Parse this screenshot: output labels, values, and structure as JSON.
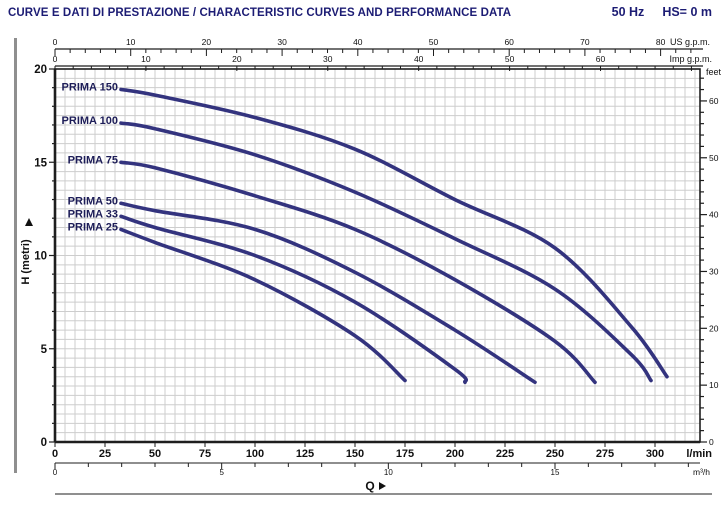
{
  "header": {
    "title": "CURVE E DATI DI PRESTAZIONE / CHARACTERISTIC CURVES AND PERFORMANCE DATA",
    "frequency": "50 Hz",
    "suction_head": "HS= 0 m"
  },
  "chart_data": {
    "type": "line",
    "title": "CURVE E DATI DI PRESTAZIONE / CHARACTERISTIC CURVES AND PERFORMANCE DATA",
    "x_axis_title": "Q",
    "y_axis_title": "H (metri)",
    "x_axes": {
      "us_gpm": {
        "unit": "US g.p.m.",
        "ticks": [
          0,
          10,
          20,
          30,
          40,
          50,
          60,
          70,
          80
        ],
        "minor_step": 2,
        "lmin_per_unit": 3.785
      },
      "imp_gpm": {
        "unit": "Imp g.p.m.",
        "ticks": [
          0,
          10,
          20,
          30,
          40,
          50,
          60
        ],
        "minor_step": 2,
        "lmin_per_unit": 4.546
      },
      "lmin": {
        "unit": "l/min",
        "ticks": [
          0,
          25,
          50,
          75,
          100,
          125,
          150,
          175,
          200,
          225,
          250,
          275,
          300
        ],
        "range": [
          0,
          322.5
        ]
      },
      "m3h": {
        "unit": "m³/h",
        "ticks": [
          0,
          5,
          10,
          15
        ],
        "minor_step": 1,
        "lmin_per_unit": 16.667
      }
    },
    "y_axes": {
      "metres": {
        "label": "H (metri)",
        "ticks": [
          0,
          5,
          10,
          15,
          20
        ],
        "minor_step": 1,
        "range": [
          0,
          20
        ]
      },
      "feet": {
        "unit": "feet",
        "ticks": [
          0,
          10,
          20,
          30,
          40,
          50,
          60
        ],
        "minor_step": 2,
        "m_per_unit": 0.3048
      }
    },
    "grid": {
      "x_step_lmin": 5,
      "y_step_m": 0.5,
      "on": true
    },
    "legend_position": "curve-start-labels",
    "series_color": "#33337e",
    "series_label_color": "#1d1d58",
    "series": [
      {
        "name": "PRIMA 150",
        "points": [
          [
            33,
            18.9
          ],
          [
            50,
            18.6
          ],
          [
            100,
            17.4
          ],
          [
            150,
            15.7
          ],
          [
            200,
            13.0
          ],
          [
            250,
            10.4
          ],
          [
            288,
            6.2
          ],
          [
            306,
            3.5
          ]
        ]
      },
      {
        "name": "PRIMA 100",
        "points": [
          [
            33,
            17.1
          ],
          [
            50,
            16.8
          ],
          [
            100,
            15.4
          ],
          [
            150,
            13.4
          ],
          [
            200,
            10.9
          ],
          [
            250,
            8.2
          ],
          [
            288,
            4.7
          ],
          [
            298,
            3.3
          ]
        ]
      },
      {
        "name": "PRIMA 75",
        "points": [
          [
            33,
            15.0
          ],
          [
            50,
            14.7
          ],
          [
            100,
            13.2
          ],
          [
            150,
            11.4
          ],
          [
            200,
            8.7
          ],
          [
            250,
            5.4
          ],
          [
            270,
            3.2
          ]
        ]
      },
      {
        "name": "PRIMA 50",
        "points": [
          [
            33,
            12.8
          ],
          [
            50,
            12.4
          ],
          [
            100,
            11.4
          ],
          [
            150,
            9.1
          ],
          [
            200,
            6.0
          ],
          [
            240,
            3.2
          ]
        ]
      },
      {
        "name": "PRIMA 33",
        "points": [
          [
            33,
            12.1
          ],
          [
            50,
            11.5
          ],
          [
            100,
            10.0
          ],
          [
            150,
            7.5
          ],
          [
            200,
            3.9
          ],
          [
            205,
            3.2
          ]
        ]
      },
      {
        "name": "PRIMA 25",
        "points": [
          [
            33,
            11.4
          ],
          [
            50,
            10.7
          ],
          [
            100,
            8.7
          ],
          [
            150,
            5.7
          ],
          [
            175,
            3.3
          ]
        ]
      }
    ]
  }
}
